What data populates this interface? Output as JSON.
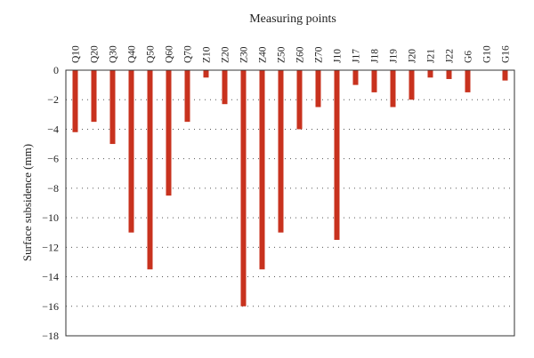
{
  "chart_data": {
    "type": "bar",
    "title": "Measuring points",
    "xlabel": "",
    "ylabel": "Surface subsidence (mm)",
    "ylim": [
      -18,
      0
    ],
    "yticks": [
      0,
      -2,
      -4,
      -6,
      -8,
      -10,
      -12,
      -14,
      -16,
      -18
    ],
    "ytick_labels": [
      "0",
      "−2",
      "−4",
      "−6",
      "−8",
      "−10",
      "−12",
      "−14",
      "−16",
      "−18"
    ],
    "grid": true,
    "x_axis_position": "top",
    "categories": [
      "Q10",
      "Q20",
      "Q30",
      "Q40",
      "Q50",
      "Q60",
      "Q70",
      "Z10",
      "Z20",
      "Z30",
      "Z40",
      "Z50",
      "Z60",
      "Z70",
      "J10",
      "J17",
      "J18",
      "J19",
      "J20",
      "J21",
      "J22",
      "G6",
      "G10",
      "G16"
    ],
    "values": [
      -4.2,
      -3.5,
      -5.0,
      -11.0,
      -13.5,
      -8.5,
      -3.5,
      -0.5,
      -2.3,
      -16.0,
      -13.5,
      -11.0,
      -4.0,
      -2.5,
      -11.5,
      -1.0,
      -1.5,
      -2.5,
      -2.0,
      -0.5,
      -0.6,
      -1.5,
      0,
      -0.7
    ],
    "bar_color": "#c8321e"
  }
}
